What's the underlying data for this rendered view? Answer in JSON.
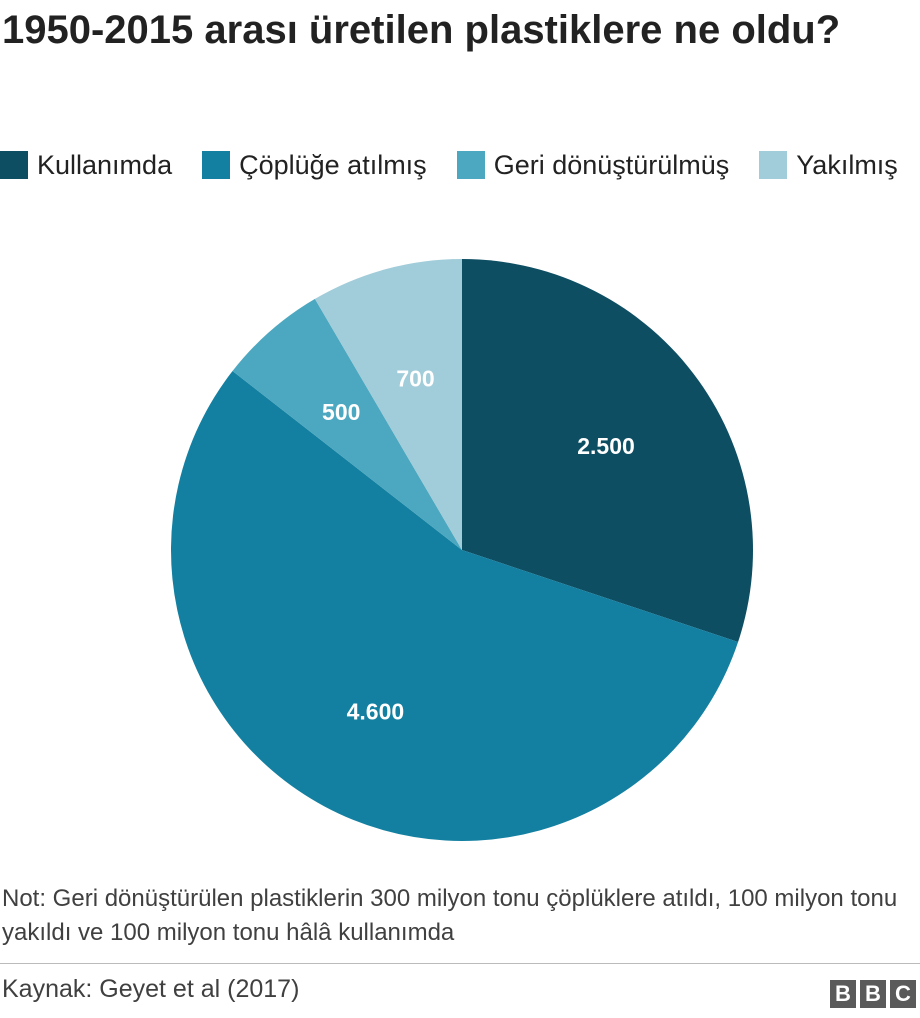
{
  "chart_data": {
    "type": "pie",
    "title": "1950-2015 arası üretilen plastiklere ne oldu?",
    "categories": [
      "Kullanımda",
      "Çöplüğe atılmış",
      "Geri dönüştürülmüş",
      "Yakılmış"
    ],
    "values": [
      2500,
      4600,
      500,
      700
    ],
    "value_labels": [
      "2.500",
      "4.600",
      "500",
      "700"
    ],
    "colors": [
      "#0d4e63",
      "#1380a1",
      "#4ca8c0",
      "#a1ccd9"
    ],
    "legend_position": "top-left",
    "start": "12 o'clock",
    "direction": "clockwise"
  },
  "note": "Not: Geri dönüştürülen plastiklerin 300 milyon tonu çöplüklere atıldı, 100 milyon tonu yakıldı ve 100 milyon tonu hâlâ kullanımda",
  "source": "Kaynak: Geyet et al (2017)",
  "logo": {
    "letters": [
      "B",
      "B",
      "C"
    ]
  }
}
